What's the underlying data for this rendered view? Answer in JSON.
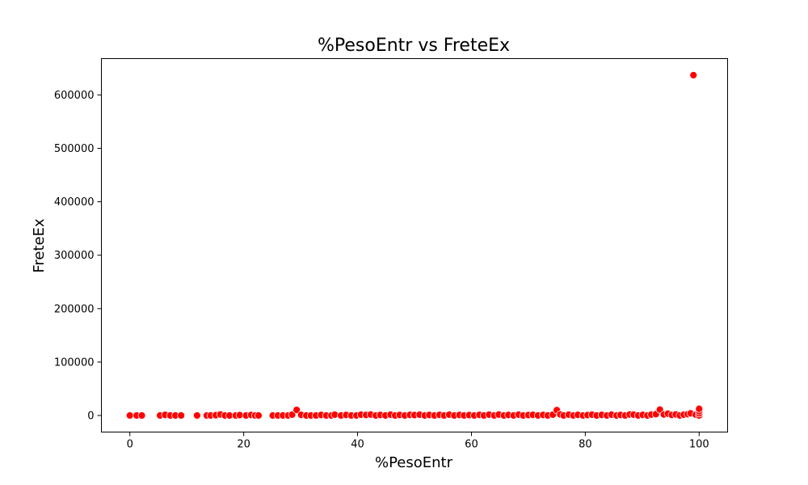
{
  "chart_data": {
    "type": "scatter",
    "title": "%PesoEntr vs FreteEx",
    "xlabel": "%PesoEntr",
    "ylabel": "FreteEx",
    "xlim": [
      -5,
      105
    ],
    "ylim": [
      -31000,
      668000
    ],
    "x_ticks": [
      0,
      20,
      40,
      60,
      80,
      100
    ],
    "y_ticks": [
      0,
      100000,
      200000,
      300000,
      400000,
      500000,
      600000
    ],
    "grid": false,
    "legend": "none",
    "marker_color": "#ff0000",
    "marker_edge_color": "#ffffff",
    "series": [
      {
        "points": [
          [
            0,
            0
          ],
          [
            1.2,
            0
          ],
          [
            2.1,
            0
          ],
          [
            5.3,
            0
          ],
          [
            6.2,
            1200
          ],
          [
            7.1,
            0
          ],
          [
            8.0,
            0
          ],
          [
            9.0,
            0
          ],
          [
            11.8,
            0
          ],
          [
            13.5,
            0
          ],
          [
            14.2,
            0
          ],
          [
            15.1,
            500
          ],
          [
            15.9,
            2000
          ],
          [
            16.7,
            0
          ],
          [
            17.5,
            0
          ],
          [
            18.6,
            0
          ],
          [
            19.3,
            800
          ],
          [
            20.4,
            0
          ],
          [
            21.3,
            1000
          ],
          [
            22.0,
            0
          ],
          [
            22.6,
            0
          ],
          [
            25.1,
            0
          ],
          [
            26.0,
            0
          ],
          [
            26.9,
            0
          ],
          [
            27.8,
            0
          ],
          [
            28.5,
            1500
          ],
          [
            29.3,
            10500
          ],
          [
            30.1,
            1200
          ],
          [
            31.0,
            0
          ],
          [
            31.8,
            0
          ],
          [
            32.7,
            0
          ],
          [
            33.6,
            1000
          ],
          [
            34.5,
            0
          ],
          [
            35.4,
            0
          ],
          [
            36.0,
            1500
          ],
          [
            37.1,
            0
          ],
          [
            38.0,
            1000
          ],
          [
            38.9,
            0
          ],
          [
            39.8,
            0
          ],
          [
            40.6,
            1500
          ],
          [
            41.5,
            1000
          ],
          [
            42.3,
            1800
          ],
          [
            43.2,
            0
          ],
          [
            44.0,
            1000
          ],
          [
            44.9,
            0
          ],
          [
            45.8,
            1500
          ],
          [
            46.6,
            0
          ],
          [
            47.4,
            1000
          ],
          [
            48.3,
            0
          ],
          [
            49.2,
            1200
          ],
          [
            50.0,
            800
          ],
          [
            50.9,
            1500
          ],
          [
            51.8,
            0
          ],
          [
            52.6,
            1000
          ],
          [
            53.5,
            0
          ],
          [
            54.4,
            1200
          ],
          [
            55.2,
            0
          ],
          [
            56.1,
            1500
          ],
          [
            57.0,
            0
          ],
          [
            57.9,
            1000
          ],
          [
            58.7,
            0
          ],
          [
            59.6,
            800
          ],
          [
            60.5,
            0
          ],
          [
            61.4,
            1200
          ],
          [
            62.2,
            0
          ],
          [
            63.1,
            1500
          ],
          [
            64.0,
            0
          ],
          [
            64.8,
            1800
          ],
          [
            65.7,
            0
          ],
          [
            66.5,
            1000
          ],
          [
            67.4,
            0
          ],
          [
            68.3,
            1500
          ],
          [
            69.1,
            0
          ],
          [
            70.0,
            800
          ],
          [
            70.8,
            1200
          ],
          [
            71.7,
            0
          ],
          [
            72.6,
            1000
          ],
          [
            73.4,
            0
          ],
          [
            74.3,
            1500
          ],
          [
            75.0,
            10000
          ],
          [
            75.6,
            2000
          ],
          [
            76.2,
            0
          ],
          [
            77.1,
            1500
          ],
          [
            77.9,
            0
          ],
          [
            78.7,
            1200
          ],
          [
            79.6,
            0
          ],
          [
            80.4,
            800
          ],
          [
            81.2,
            1500
          ],
          [
            82.0,
            0
          ],
          [
            82.9,
            1200
          ],
          [
            83.8,
            0
          ],
          [
            84.6,
            1500
          ],
          [
            85.5,
            0
          ],
          [
            86.2,
            1000
          ],
          [
            87.0,
            0
          ],
          [
            87.8,
            2000
          ],
          [
            88.5,
            1500
          ],
          [
            89.3,
            0
          ],
          [
            90.1,
            1200
          ],
          [
            90.9,
            0
          ],
          [
            91.6,
            1800
          ],
          [
            92.4,
            2500
          ],
          [
            93.1,
            11000
          ],
          [
            93.8,
            2000
          ],
          [
            94.5,
            3500
          ],
          [
            95.2,
            1000
          ],
          [
            95.9,
            2000
          ],
          [
            96.6,
            0
          ],
          [
            97.3,
            1500
          ],
          [
            98.0,
            2500
          ],
          [
            98.5,
            4000
          ],
          [
            99.0,
            637000
          ],
          [
            99.4,
            1500
          ],
          [
            100,
            0
          ],
          [
            100,
            4000
          ],
          [
            100,
            8000
          ],
          [
            100,
            12500
          ]
        ]
      }
    ]
  }
}
